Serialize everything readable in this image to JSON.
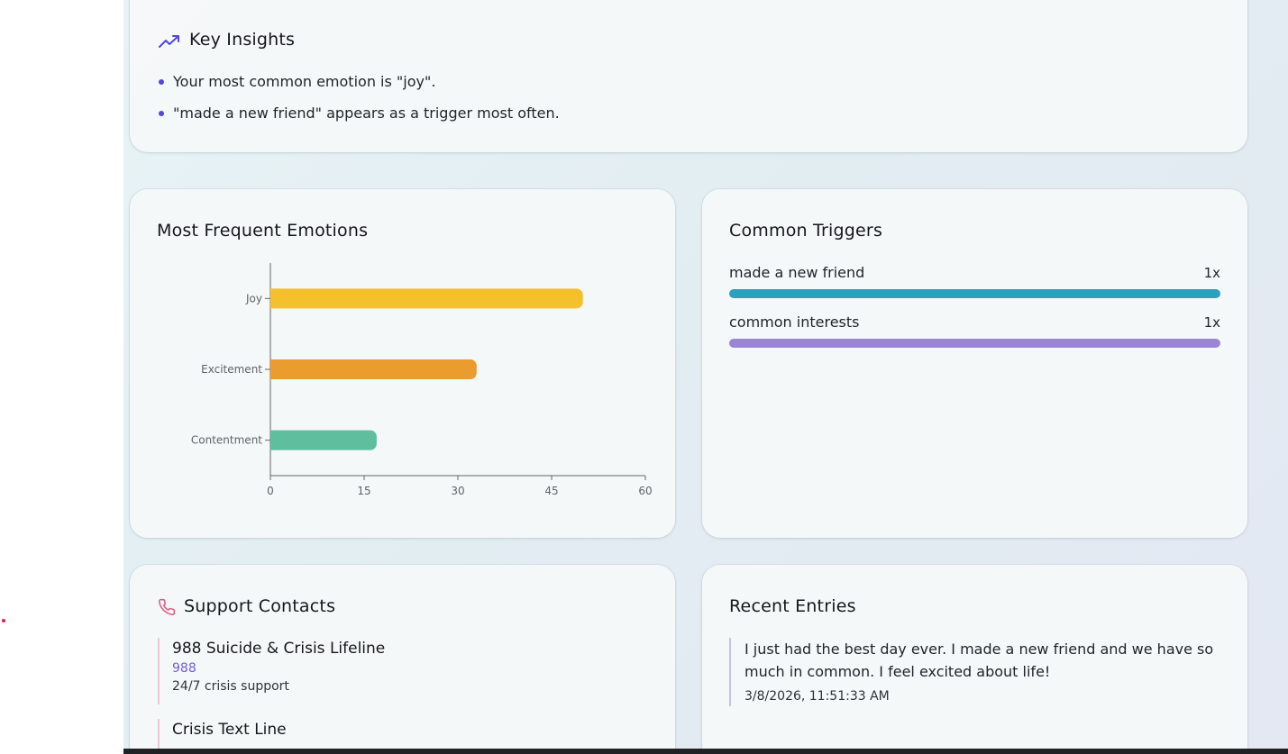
{
  "insights": {
    "title": "Key Insights",
    "icon": "trending-up-icon",
    "items": [
      "Your most common emotion is \"joy\".",
      "\"made a new friend\" appears as a trigger most often."
    ]
  },
  "emotions": {
    "title": "Most Frequent Emotions"
  },
  "chart_data": {
    "type": "bar",
    "orientation": "horizontal",
    "categories": [
      "Joy",
      "Excitement",
      "Contentment"
    ],
    "values": [
      50,
      33,
      17
    ],
    "colors": [
      "#f4c02b",
      "#ea9c2f",
      "#5fbe9d"
    ],
    "xticks": [
      "0",
      "15",
      "30",
      "45",
      "60"
    ],
    "xlim": [
      0,
      60
    ],
    "title": "",
    "xlabel": "",
    "ylabel": ""
  },
  "triggers": {
    "title": "Common Triggers",
    "items": [
      {
        "label": "made a new friend",
        "count": "1x",
        "color": "#2ba0bd",
        "fraction": 1.0
      },
      {
        "label": "common interests",
        "count": "1x",
        "color": "#9a85d4",
        "fraction": 1.0
      }
    ]
  },
  "contacts": {
    "title": "Support Contacts",
    "icon": "phone-icon",
    "items": [
      {
        "name": "988 Suicide & Crisis Lifeline",
        "number": "988",
        "description": "24/7 crisis support"
      },
      {
        "name": "Crisis Text Line"
      }
    ]
  },
  "entries": {
    "title": "Recent Entries",
    "items": [
      {
        "text": "I just had the best day ever. I made a new friend and we have so much in common. I feel excited about life!",
        "timestamp": "3/8/2026, 11:51:33 AM"
      }
    ]
  },
  "accent_color": "#4f46e5"
}
